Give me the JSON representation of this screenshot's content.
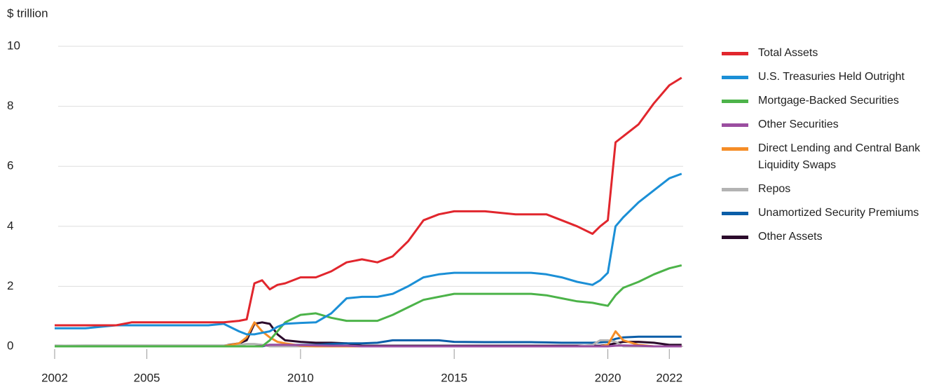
{
  "chart_data": {
    "type": "line",
    "y_label": "$ trillion",
    "x": [
      2002,
      2003,
      2004,
      2004.5,
      2005,
      2006,
      2007,
      2007.5,
      2008,
      2008.25,
      2008.5,
      2008.75,
      2009,
      2009.25,
      2009.5,
      2010,
      2010.5,
      2011,
      2011.5,
      2012,
      2012.5,
      2013,
      2013.5,
      2014,
      2014.5,
      2015,
      2016,
      2017,
      2017.5,
      2018,
      2018.5,
      2019,
      2019.5,
      2019.75,
      2020,
      2020.25,
      2020.5,
      2021,
      2021.5,
      2022,
      2022.4
    ],
    "xlim": [
      2002,
      2022.45
    ],
    "xticks": [
      2002,
      2005,
      2010,
      2015,
      2020,
      2022
    ],
    "ylim": [
      0,
      10
    ],
    "yticks": [
      0,
      2,
      4,
      6,
      8,
      10
    ],
    "grid": true,
    "series": [
      {
        "name": "Total Assets",
        "color": "#e1262d",
        "values": [
          0.7,
          0.7,
          0.7,
          0.8,
          0.8,
          0.8,
          0.8,
          0.8,
          0.85,
          0.9,
          2.1,
          2.2,
          1.9,
          2.05,
          2.1,
          2.3,
          2.3,
          2.5,
          2.8,
          2.9,
          2.8,
          3.0,
          3.5,
          4.2,
          4.4,
          4.5,
          4.5,
          4.4,
          4.4,
          4.4,
          4.2,
          4.0,
          3.75,
          4.0,
          4.2,
          6.8,
          7.0,
          7.4,
          8.1,
          8.7,
          8.95
        ]
      },
      {
        "name": "U.S. Treasuries Held Outright",
        "color": "#1b8fd6",
        "values": [
          0.6,
          0.6,
          0.7,
          0.7,
          0.7,
          0.7,
          0.7,
          0.75,
          0.5,
          0.4,
          0.4,
          0.45,
          0.5,
          0.65,
          0.75,
          0.78,
          0.8,
          1.1,
          1.6,
          1.65,
          1.65,
          1.75,
          2.0,
          2.3,
          2.4,
          2.45,
          2.45,
          2.45,
          2.45,
          2.4,
          2.3,
          2.15,
          2.05,
          2.2,
          2.45,
          4.0,
          4.3,
          4.8,
          5.2,
          5.6,
          5.75
        ]
      },
      {
        "name": "Mortgage-Backed Securities",
        "color": "#4cb349",
        "values": [
          0,
          0,
          0,
          0,
          0,
          0,
          0,
          0,
          0,
          0,
          0,
          0,
          0.2,
          0.5,
          0.8,
          1.05,
          1.1,
          0.95,
          0.85,
          0.85,
          0.85,
          1.05,
          1.3,
          1.55,
          1.65,
          1.75,
          1.75,
          1.75,
          1.75,
          1.7,
          1.6,
          1.5,
          1.45,
          1.4,
          1.35,
          1.7,
          1.95,
          2.15,
          2.4,
          2.6,
          2.7
        ]
      },
      {
        "name": "Other Securities",
        "color": "#9b4ea0",
        "values": [
          0,
          0,
          0,
          0,
          0,
          0,
          0,
          0,
          0,
          0,
          0,
          0.02,
          0.05,
          0.05,
          0.05,
          0.04,
          0.03,
          0.02,
          0.02,
          0,
          0,
          0,
          0,
          0,
          0,
          0,
          0,
          0,
          0,
          0,
          0,
          0,
          0,
          0,
          0,
          0.02,
          0.03,
          0.02,
          0,
          0,
          0
        ]
      },
      {
        "name": "Direct Lending and Central Bank Liquidity Swaps",
        "color": "#f58d27",
        "values": [
          0,
          0,
          0,
          0,
          0,
          0,
          0,
          0,
          0.1,
          0.3,
          0.8,
          0.5,
          0.3,
          0.15,
          0.1,
          0.02,
          0,
          0,
          0,
          0,
          0,
          0,
          0,
          0,
          0,
          0,
          0,
          0,
          0,
          0,
          0,
          0,
          0,
          0,
          0.05,
          0.5,
          0.2,
          0.05,
          0,
          0,
          0
        ]
      },
      {
        "name": "Repos",
        "color": "#b3b3b3",
        "values": [
          0.02,
          0.03,
          0.03,
          0.03,
          0.03,
          0.03,
          0.03,
          0.03,
          0.05,
          0.08,
          0.08,
          0.05,
          0,
          0,
          0,
          0,
          0,
          0,
          0,
          0,
          0,
          0,
          0,
          0,
          0,
          0,
          0,
          0,
          0,
          0,
          0,
          0,
          0.05,
          0.2,
          0.2,
          0.15,
          0,
          0,
          0,
          0,
          0
        ]
      },
      {
        "name": "Unamortized Security Premiums",
        "color": "#0b5ea8",
        "values": [
          0,
          0,
          0,
          0,
          0,
          0,
          0,
          0,
          0,
          0,
          0,
          0,
          0.05,
          0.05,
          0.05,
          0.05,
          0.05,
          0.08,
          0.1,
          0.1,
          0.12,
          0.2,
          0.2,
          0.2,
          0.2,
          0.15,
          0.14,
          0.14,
          0.14,
          0.13,
          0.12,
          0.12,
          0.12,
          0.13,
          0.15,
          0.25,
          0.3,
          0.32,
          0.32,
          0.32,
          0.32
        ]
      },
      {
        "name": "Other Assets",
        "color": "#2b0a2b",
        "values": [
          0.02,
          0.02,
          0.02,
          0.02,
          0.02,
          0.02,
          0.02,
          0.02,
          0.1,
          0.2,
          0.75,
          0.8,
          0.75,
          0.4,
          0.2,
          0.15,
          0.12,
          0.12,
          0.1,
          0.02,
          0.02,
          0.02,
          0.02,
          0.02,
          0.02,
          0.02,
          0.02,
          0.02,
          0.02,
          0.02,
          0.02,
          0.02,
          0.02,
          0.02,
          0.05,
          0.1,
          0.15,
          0.15,
          0.12,
          0.05,
          0.05
        ]
      }
    ]
  }
}
